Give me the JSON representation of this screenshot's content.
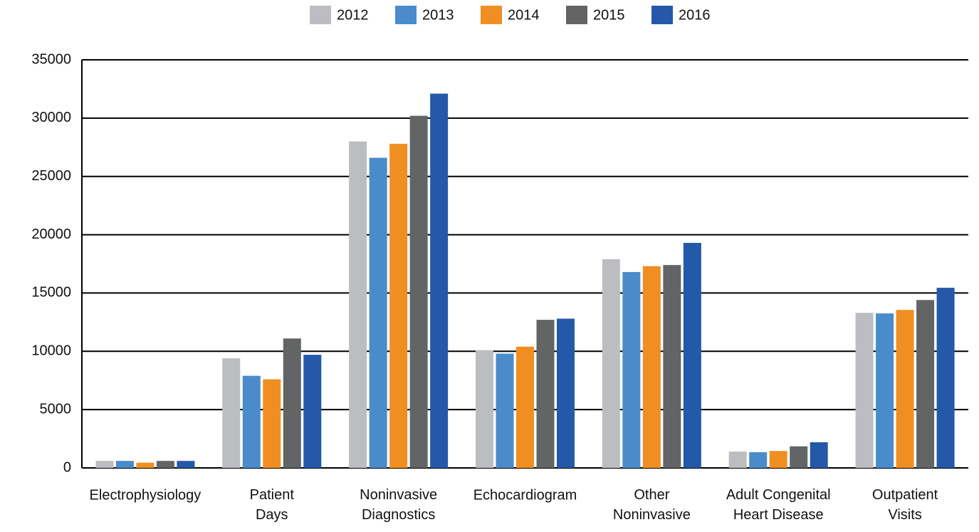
{
  "chart_data": {
    "type": "bar",
    "categories": [
      "Electrophysiology",
      "Patient\nDays",
      "Noninvasive\nDiagnostics",
      "Echocardiogram",
      "Other\nNoninvasive",
      "Adult Congenital\nHeart Disease",
      "Outpatient\nVisits"
    ],
    "series": [
      {
        "name": "2012",
        "color": "#bcbdc0",
        "values": [
          600,
          9400,
          28000,
          10100,
          17900,
          1400,
          13300
        ]
      },
      {
        "name": "2013",
        "color": "#4a8ccb",
        "values": [
          600,
          7900,
          26600,
          9800,
          16800,
          1350,
          13250
        ]
      },
      {
        "name": "2014",
        "color": "#f18e22",
        "values": [
          450,
          7600,
          27800,
          10400,
          17300,
          1450,
          13550
        ]
      },
      {
        "name": "2015",
        "color": "#636466",
        "values": [
          600,
          11100,
          30200,
          12700,
          17400,
          1850,
          14400
        ]
      },
      {
        "name": "2016",
        "color": "#2359a8",
        "values": [
          600,
          9700,
          32100,
          12800,
          19300,
          2200,
          15450
        ]
      }
    ],
    "ylim": [
      0,
      35000
    ],
    "yticks": [
      0,
      5000,
      10000,
      15000,
      20000,
      25000,
      30000,
      35000
    ],
    "grid": true,
    "legend": "top"
  }
}
